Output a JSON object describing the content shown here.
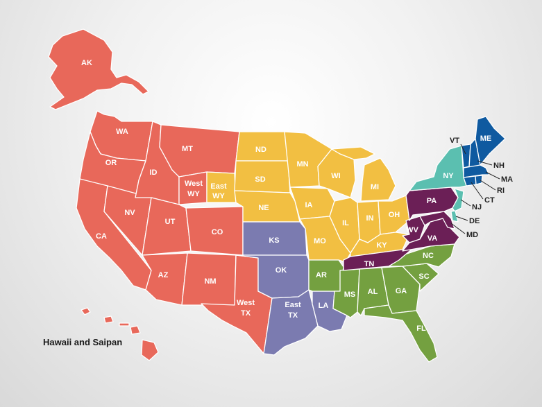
{
  "caption": "Hawaii and Saipan",
  "colors": {
    "west": "#e8685a",
    "mountain": "#f2bf42",
    "south_central": "#7b7bb0",
    "south": "#74a040",
    "appalachia": "#6b1f56",
    "northeast": "#5bbfb0",
    "new_england": "#0f5aa0"
  },
  "labels": {
    "AK": "AK",
    "WA": "WA",
    "OR": "OR",
    "CA": "CA",
    "ID": "ID",
    "NV": "NV",
    "MT": "MT",
    "UT": "UT",
    "AZ": "AZ",
    "CO": "CO",
    "NM": "NM",
    "WWY1": "West",
    "WWY2": "WY",
    "EWY1": "East",
    "EWY2": "WY",
    "WTX1": "West",
    "WTX2": "TX",
    "ETX1": "East",
    "ETX2": "TX",
    "ND": "ND",
    "SD": "SD",
    "NE": "NE",
    "MN": "MN",
    "IA": "IA",
    "WI": "WI",
    "IL": "IL",
    "MI": "MI",
    "IN": "IN",
    "OH": "OH",
    "MO": "MO",
    "KY": "KY",
    "KS": "KS",
    "OK": "OK",
    "LA": "LA",
    "AR": "AR",
    "MS": "MS",
    "AL": "AL",
    "GA": "GA",
    "SC": "SC",
    "NC": "NC",
    "FL": "FL",
    "TN": "TN",
    "WV": "WV",
    "VA": "VA",
    "PA": "PA",
    "NY": "NY",
    "VT": "VT",
    "ME": "ME",
    "NH": "NH",
    "MA": "MA",
    "RI": "RI",
    "CT": "CT",
    "NJ": "NJ",
    "DE": "DE",
    "MD": "MD"
  }
}
